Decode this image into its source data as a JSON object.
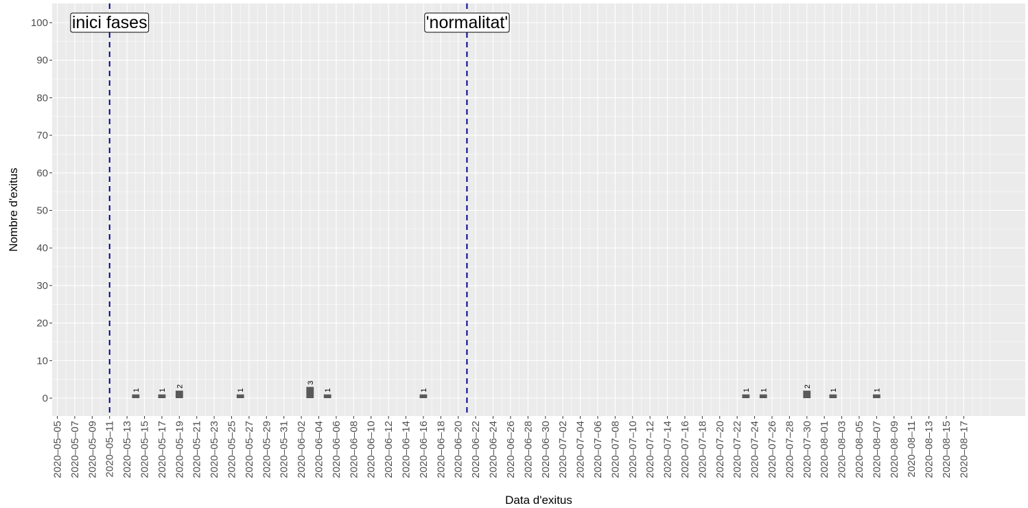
{
  "chart_data": {
    "type": "bar",
    "xlabel": "Data d'exitus",
    "ylabel": "Nombre d'exitus",
    "ylim": [
      -5,
      105
    ],
    "y_ticks": [
      0,
      10,
      20,
      30,
      40,
      50,
      60,
      70,
      80,
      90,
      100
    ],
    "x_range": [
      "2020-05-05",
      "2020-08-20"
    ],
    "x_ticks": [
      "2020-05-05",
      "2020-05-07",
      "2020-05-09",
      "2020-05-11",
      "2020-05-13",
      "2020-05-15",
      "2020-05-17",
      "2020-05-19",
      "2020-05-21",
      "2020-05-23",
      "2020-05-25",
      "2020-05-27",
      "2020-05-29",
      "2020-05-31",
      "2020-06-02",
      "2020-06-04",
      "2020-06-06",
      "2020-06-08",
      "2020-06-10",
      "2020-06-12",
      "2020-06-14",
      "2020-06-16",
      "2020-06-18",
      "2020-06-20",
      "2020-06-22",
      "2020-06-24",
      "2020-06-26",
      "2020-06-28",
      "2020-06-30",
      "2020-07-02",
      "2020-07-04",
      "2020-07-06",
      "2020-07-08",
      "2020-07-10",
      "2020-07-12",
      "2020-07-14",
      "2020-07-16",
      "2020-07-18",
      "2020-07-20",
      "2020-07-22",
      "2020-07-24",
      "2020-07-26",
      "2020-07-28",
      "2020-07-30",
      "2020-08-01",
      "2020-08-03",
      "2020-08-05",
      "2020-08-07",
      "2020-08-09",
      "2020-08-11",
      "2020-08-13",
      "2020-08-15",
      "2020-08-17"
    ],
    "bars": [
      {
        "date": "2020-05-14",
        "value": 1
      },
      {
        "date": "2020-05-17",
        "value": 1
      },
      {
        "date": "2020-05-19",
        "value": 2
      },
      {
        "date": "2020-05-26",
        "value": 1
      },
      {
        "date": "2020-06-03",
        "value": 3
      },
      {
        "date": "2020-06-05",
        "value": 1
      },
      {
        "date": "2020-06-16",
        "value": 1
      },
      {
        "date": "2020-07-23",
        "value": 1
      },
      {
        "date": "2020-07-25",
        "value": 1
      },
      {
        "date": "2020-07-30",
        "value": 2
      },
      {
        "date": "2020-08-02",
        "value": 1
      },
      {
        "date": "2020-08-07",
        "value": 1
      }
    ],
    "vlines": [
      {
        "date": "2020-05-11",
        "label": "inici fases"
      },
      {
        "date": "2020-06-21",
        "label": "'normalitat'"
      }
    ],
    "grid": true,
    "colors": {
      "panel": "#ebebeb",
      "grid_major": "#ffffff",
      "bar": "#595959",
      "vline": "#00008b"
    }
  }
}
